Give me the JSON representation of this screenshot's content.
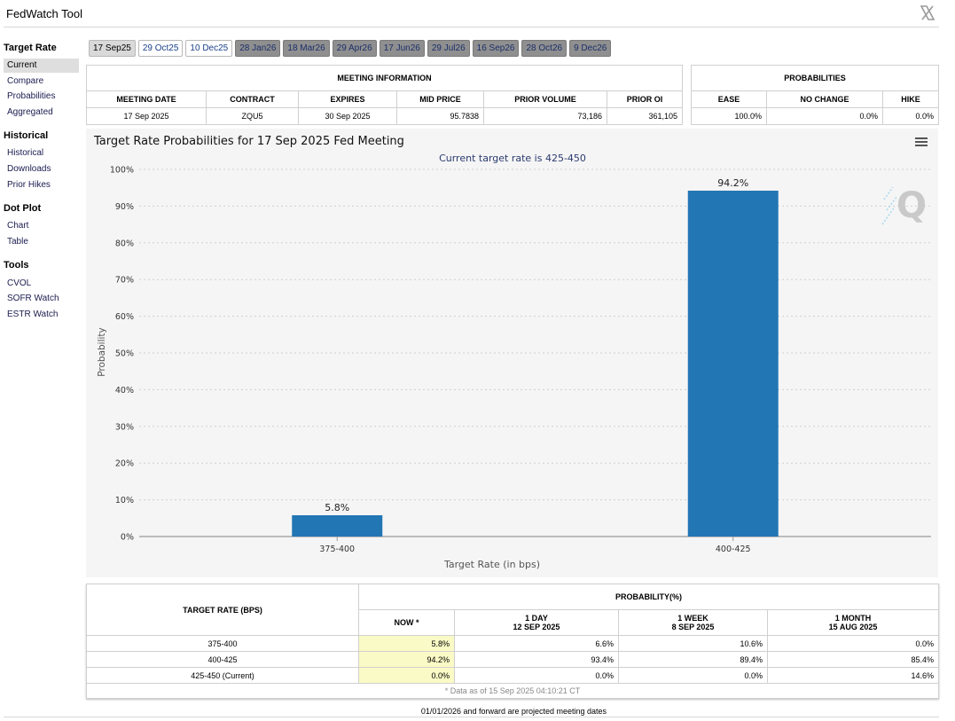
{
  "app": {
    "title": "FedWatch Tool"
  },
  "sidebar": {
    "sections": [
      {
        "heading": "Target Rate",
        "items": [
          "Current",
          "Compare",
          "Probabilities",
          "Aggregated"
        ]
      },
      {
        "heading": "Historical",
        "items": [
          "Historical",
          "Downloads",
          "Prior Hikes"
        ]
      },
      {
        "heading": "Dot Plot",
        "items": [
          "Chart",
          "Table"
        ]
      },
      {
        "heading": "Tools",
        "items": [
          "CVOL",
          "SOFR Watch",
          "ESTR Watch"
        ]
      }
    ],
    "active_item": "Current"
  },
  "tabs": [
    {
      "label": "17 Sep25",
      "state": "selected"
    },
    {
      "label": "29 Oct25",
      "state": "normal"
    },
    {
      "label": "10 Dec25",
      "state": "normal"
    },
    {
      "label": "28 Jan26",
      "state": "future"
    },
    {
      "label": "18 Mar26",
      "state": "future"
    },
    {
      "label": "29 Apr26",
      "state": "future"
    },
    {
      "label": "17 Jun26",
      "state": "future"
    },
    {
      "label": "29 Jul26",
      "state": "future"
    },
    {
      "label": "16 Sep26",
      "state": "future"
    },
    {
      "label": "28 Oct26",
      "state": "future"
    },
    {
      "label": "9 Dec26",
      "state": "future"
    }
  ],
  "meeting_info": {
    "heading": "MEETING INFORMATION",
    "columns": [
      "MEETING DATE",
      "CONTRACT",
      "EXPIRES",
      "MID PRICE",
      "PRIOR VOLUME",
      "PRIOR OI"
    ],
    "row": [
      "17 Sep 2025",
      "ZQU5",
      "30 Sep 2025",
      "95.7838",
      "73,186",
      "361,105"
    ]
  },
  "probabilities": {
    "heading": "PROBABILITIES",
    "columns": [
      "EASE",
      "NO CHANGE",
      "HIKE"
    ],
    "row": [
      "100.0%",
      "0.0%",
      "0.0%"
    ]
  },
  "chart": {
    "title": "Target Rate Probabilities for 17 Sep 2025 Fed Meeting",
    "subtitle": "Current target rate is 425-450",
    "menu_icon": "hamburger-menu-icon",
    "watermark": "Q",
    "bar_color": "#2376b4"
  },
  "chart_data": {
    "type": "bar",
    "title": "Target Rate Probabilities for 17 Sep 2025 Fed Meeting",
    "subtitle": "Current target rate is 425-450",
    "categories": [
      "375-400",
      "400-425"
    ],
    "values": [
      5.8,
      94.2
    ],
    "value_labels": [
      "5.8%",
      "94.2%"
    ],
    "xlabel": "Target Rate (in bps)",
    "ylabel": "Probability",
    "ylim": [
      0,
      100
    ],
    "yticks": [
      "0%",
      "10%",
      "20%",
      "30%",
      "40%",
      "50%",
      "60%",
      "70%",
      "80%",
      "90%",
      "100%"
    ],
    "grid": true
  },
  "prob_table": {
    "col_target": "TARGET RATE (BPS)",
    "col_group": "PROBABILITY(%)",
    "sub_columns": [
      {
        "line1": "NOW *",
        "line2": ""
      },
      {
        "line1": "1 DAY",
        "line2": "12 SEP 2025"
      },
      {
        "line1": "1 WEEK",
        "line2": "8 SEP 2025"
      },
      {
        "line1": "1 MONTH",
        "line2": "15 AUG 2025"
      }
    ],
    "rows": [
      {
        "rate": "375-400",
        "values": [
          "5.8%",
          "6.6%",
          "10.6%",
          "0.0%"
        ]
      },
      {
        "rate": "400-425",
        "values": [
          "94.2%",
          "93.4%",
          "89.4%",
          "85.4%"
        ]
      },
      {
        "rate": "425-450 (Current)",
        "values": [
          "0.0%",
          "0.0%",
          "0.0%",
          "14.6%"
        ]
      }
    ],
    "footnote": "* Data as of 15 Sep 2025 04:10:21 CT"
  },
  "footer": {
    "note": "01/01/2026 and forward are projected meeting dates"
  }
}
